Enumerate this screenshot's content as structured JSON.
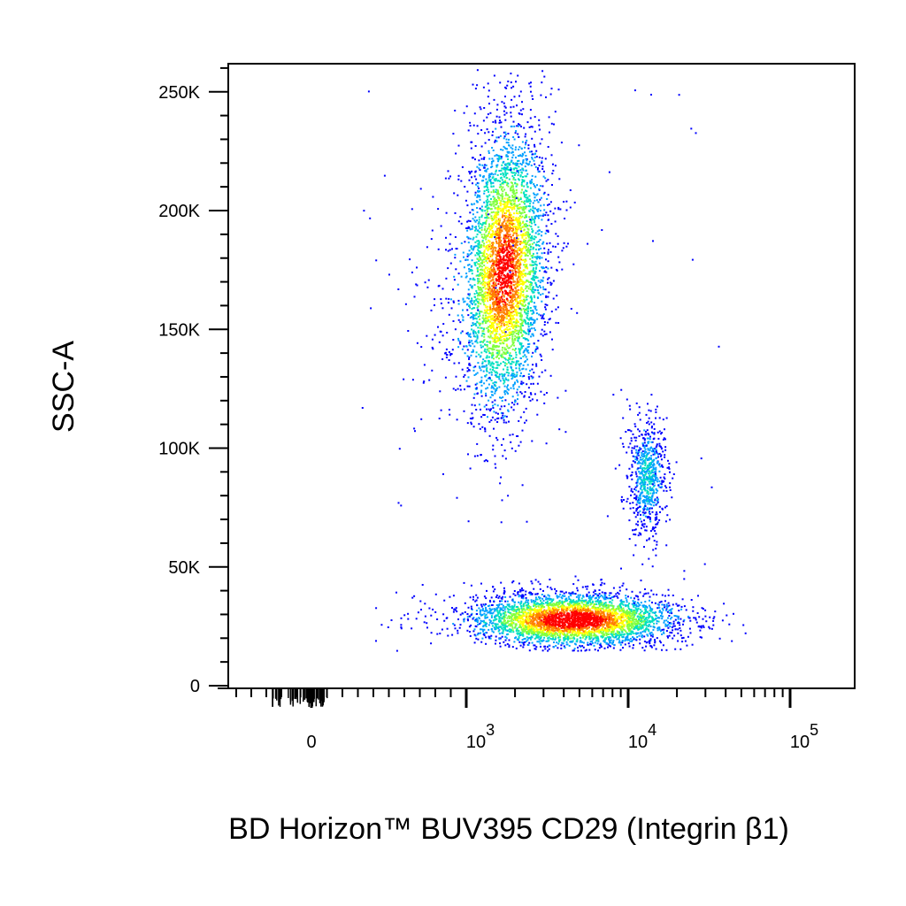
{
  "chart_data": {
    "type": "scatter",
    "subtype": "flow-cytometry-density-dot-plot",
    "xlabel": "BD Horizon™ BUV395 CD29 (Integrin β1)",
    "ylabel": "SSC-A",
    "x_scale": "biexponential",
    "y_scale": "linear",
    "xlim": [
      -600,
      200000
    ],
    "ylim": [
      0,
      262144
    ],
    "yticks": [
      {
        "value": 0,
        "label": "0"
      },
      {
        "value": 50000,
        "label": "50K"
      },
      {
        "value": 100000,
        "label": "100K"
      },
      {
        "value": 150000,
        "label": "150K"
      },
      {
        "value": 200000,
        "label": "200K"
      },
      {
        "value": 250000,
        "label": "250K"
      }
    ],
    "xticks": [
      {
        "value": 0,
        "base": "0",
        "exp": ""
      },
      {
        "value": 1000,
        "base": "10",
        "exp": "3"
      },
      {
        "value": 10000,
        "base": "10",
        "exp": "4"
      },
      {
        "value": 100000,
        "base": "10",
        "exp": "5"
      }
    ],
    "density_colors": [
      "#0000ff",
      "#00a0ff",
      "#00e0c0",
      "#80ff40",
      "#ffff00",
      "#ff8000",
      "#ff0000"
    ],
    "populations": [
      {
        "center_x": 1700,
        "center_y": 175000,
        "log_sd_x": 0.13,
        "sd_y": 30000,
        "peak_density": 0.9
      },
      {
        "center_x": 4500,
        "center_y": 28000,
        "log_sd_x": 0.32,
        "sd_y": 5500,
        "peak_density": 1.0
      },
      {
        "center_x": 13000,
        "center_y": 88000,
        "log_sd_x": 0.06,
        "sd_y": 13000,
        "peak_density": 0.3
      }
    ],
    "grid": false,
    "legend": "none"
  }
}
